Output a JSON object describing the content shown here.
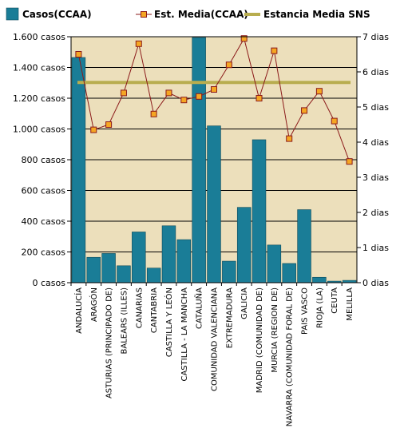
{
  "chart_data": {
    "type": "bar",
    "categories": [
      "ANDALUCÍA",
      "ARAGÓN",
      "ASTURIAS (PRINCIPADO DE)",
      "BALEARS (ILLES)",
      "CANARIAS",
      "CANTABRIA",
      "CASTILLA Y LEÓN",
      "CASTILLA - LA MANCHA",
      "CATALUÑA",
      "COMUNIDAD VALENCIANA",
      "EXTREMADURA",
      "GALICIA",
      "MADRID (COMUNIDAD DE)",
      "MURCIA (REGION DE)",
      "NAVARRA (COMUNIDAD FORAL DE)",
      "PAIS VASCO",
      "RIOJA (LA)",
      "CEUTA",
      "MELILLA"
    ],
    "series": [
      {
        "name": "Casos(CCAA)",
        "type": "bar",
        "axis": "left",
        "color": "#1a7d97",
        "values": [
          1465,
          165,
          190,
          110,
          330,
          95,
          370,
          280,
          1595,
          1020,
          140,
          490,
          930,
          245,
          125,
          475,
          35,
          10,
          15
        ]
      },
      {
        "name": "Est. Media(CCAA)",
        "type": "line",
        "axis": "right",
        "color": "#8b1a1a",
        "marker_color": "#f5a623",
        "values": [
          6.5,
          4.35,
          4.5,
          5.4,
          6.8,
          4.8,
          5.4,
          5.2,
          5.3,
          5.5,
          6.2,
          6.95,
          5.25,
          6.6,
          4.1,
          4.9,
          5.45,
          4.6,
          3.45
        ]
      },
      {
        "name": "Estancia Media SNS",
        "type": "reference-line",
        "axis": "right",
        "color": "#b8ad4f",
        "value": 5.7
      }
    ],
    "y_left": {
      "ylim": [
        0,
        1600
      ],
      "ticks": [
        "0 casos",
        "200 casos",
        "400 casos",
        "600 casos",
        "800 casos",
        "1.000 casos",
        "1.200 casos",
        "1.400 casos",
        "1.600 casos"
      ]
    },
    "y_right": {
      "ylim": [
        0,
        7
      ],
      "ticks": [
        "0 dias",
        "1 dias",
        "2 dias",
        "3 dias",
        "4 dias",
        "5 dias",
        "6 dias",
        "7 dias"
      ]
    },
    "legend": {
      "placement": "top",
      "items": [
        "Casos(CCAA)",
        "Est. Media(CCAA)",
        "Estancia Media SNS"
      ]
    },
    "grid": true,
    "plot_background": "#ecdfbb"
  }
}
